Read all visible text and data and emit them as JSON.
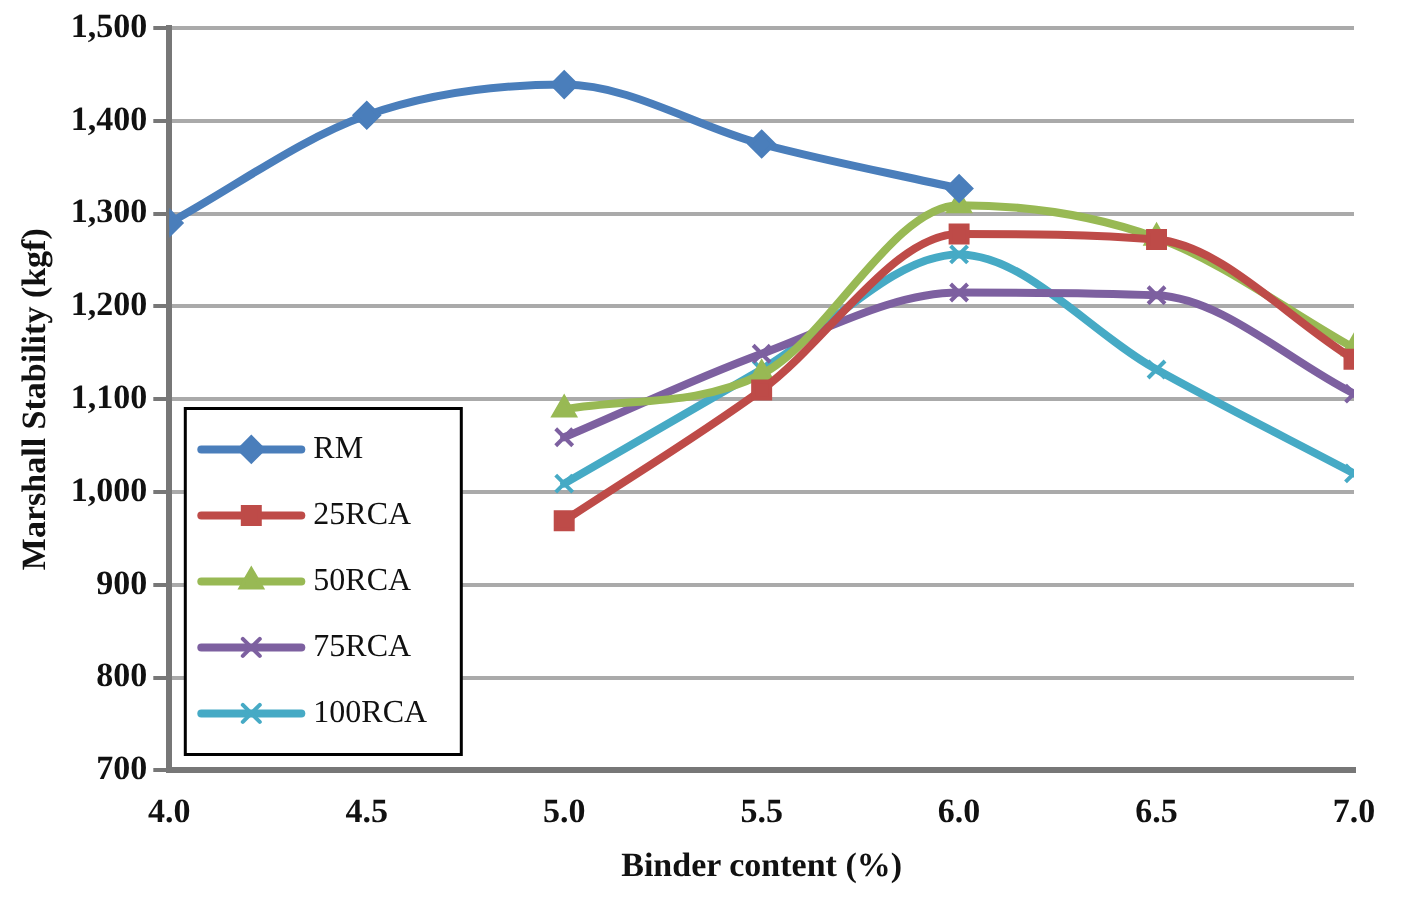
{
  "chart_data": {
    "type": "line",
    "xlabel": "Binder content (%)",
    "ylabel": "Marshall Stability (kgf)",
    "xlim": [
      4,
      7
    ],
    "xticks": [
      {
        "value": 4,
        "label": "4.0"
      },
      {
        "value": 4.5,
        "label": "4.5"
      },
      {
        "value": 5,
        "label": "5.0"
      },
      {
        "value": 5.5,
        "label": "5.5"
      },
      {
        "value": 6,
        "label": "6.0"
      },
      {
        "value": 6.5,
        "label": "6.5"
      },
      {
        "value": 7,
        "label": "7.0"
      }
    ],
    "ylim": [
      700,
      1500
    ],
    "yticks": [
      {
        "value": 700,
        "label": "700"
      },
      {
        "value": 800,
        "label": "800"
      },
      {
        "value": 900,
        "label": "900"
      },
      {
        "value": 1000,
        "label": "1,000"
      },
      {
        "value": 1100,
        "label": "1,100"
      },
      {
        "value": 1200,
        "label": "1,200"
      },
      {
        "value": 1300,
        "label": "1,300"
      },
      {
        "value": 1400,
        "label": "1,400"
      },
      {
        "value": 1500,
        "label": "1,500"
      }
    ],
    "grid": "y",
    "legend": "bottom left",
    "series": [
      {
        "name": "RM",
        "color": "#4a7ebb",
        "marker": "diamond",
        "x": [
          4,
          4.5,
          5,
          5.5,
          6
        ],
        "values": [
          1290,
          1406,
          1439,
          1375,
          1327
        ]
      },
      {
        "name": "25RCA",
        "color": "#be4b48",
        "marker": "square",
        "x": [
          5,
          5.5,
          6,
          6.5,
          7
        ],
        "values": [
          969,
          1110,
          1278,
          1272,
          1143
        ]
      },
      {
        "name": "50RCA",
        "color": "#98b954",
        "marker": "triangle",
        "x": [
          5,
          5.5,
          6,
          6.5,
          7
        ],
        "values": [
          1089,
          1127,
          1309,
          1274,
          1155
        ]
      },
      {
        "name": "75RCA",
        "color": "#7d60a0",
        "marker": "cross",
        "x": [
          5,
          5.5,
          6,
          6.5,
          7
        ],
        "values": [
          1059,
          1149,
          1215,
          1212,
          1106
        ]
      },
      {
        "name": "100RCA",
        "color": "#46aac5",
        "marker": "cross",
        "x": [
          5,
          5.5,
          6,
          6.5,
          7
        ],
        "values": [
          1009,
          1132,
          1256,
          1132,
          1020
        ]
      }
    ]
  }
}
